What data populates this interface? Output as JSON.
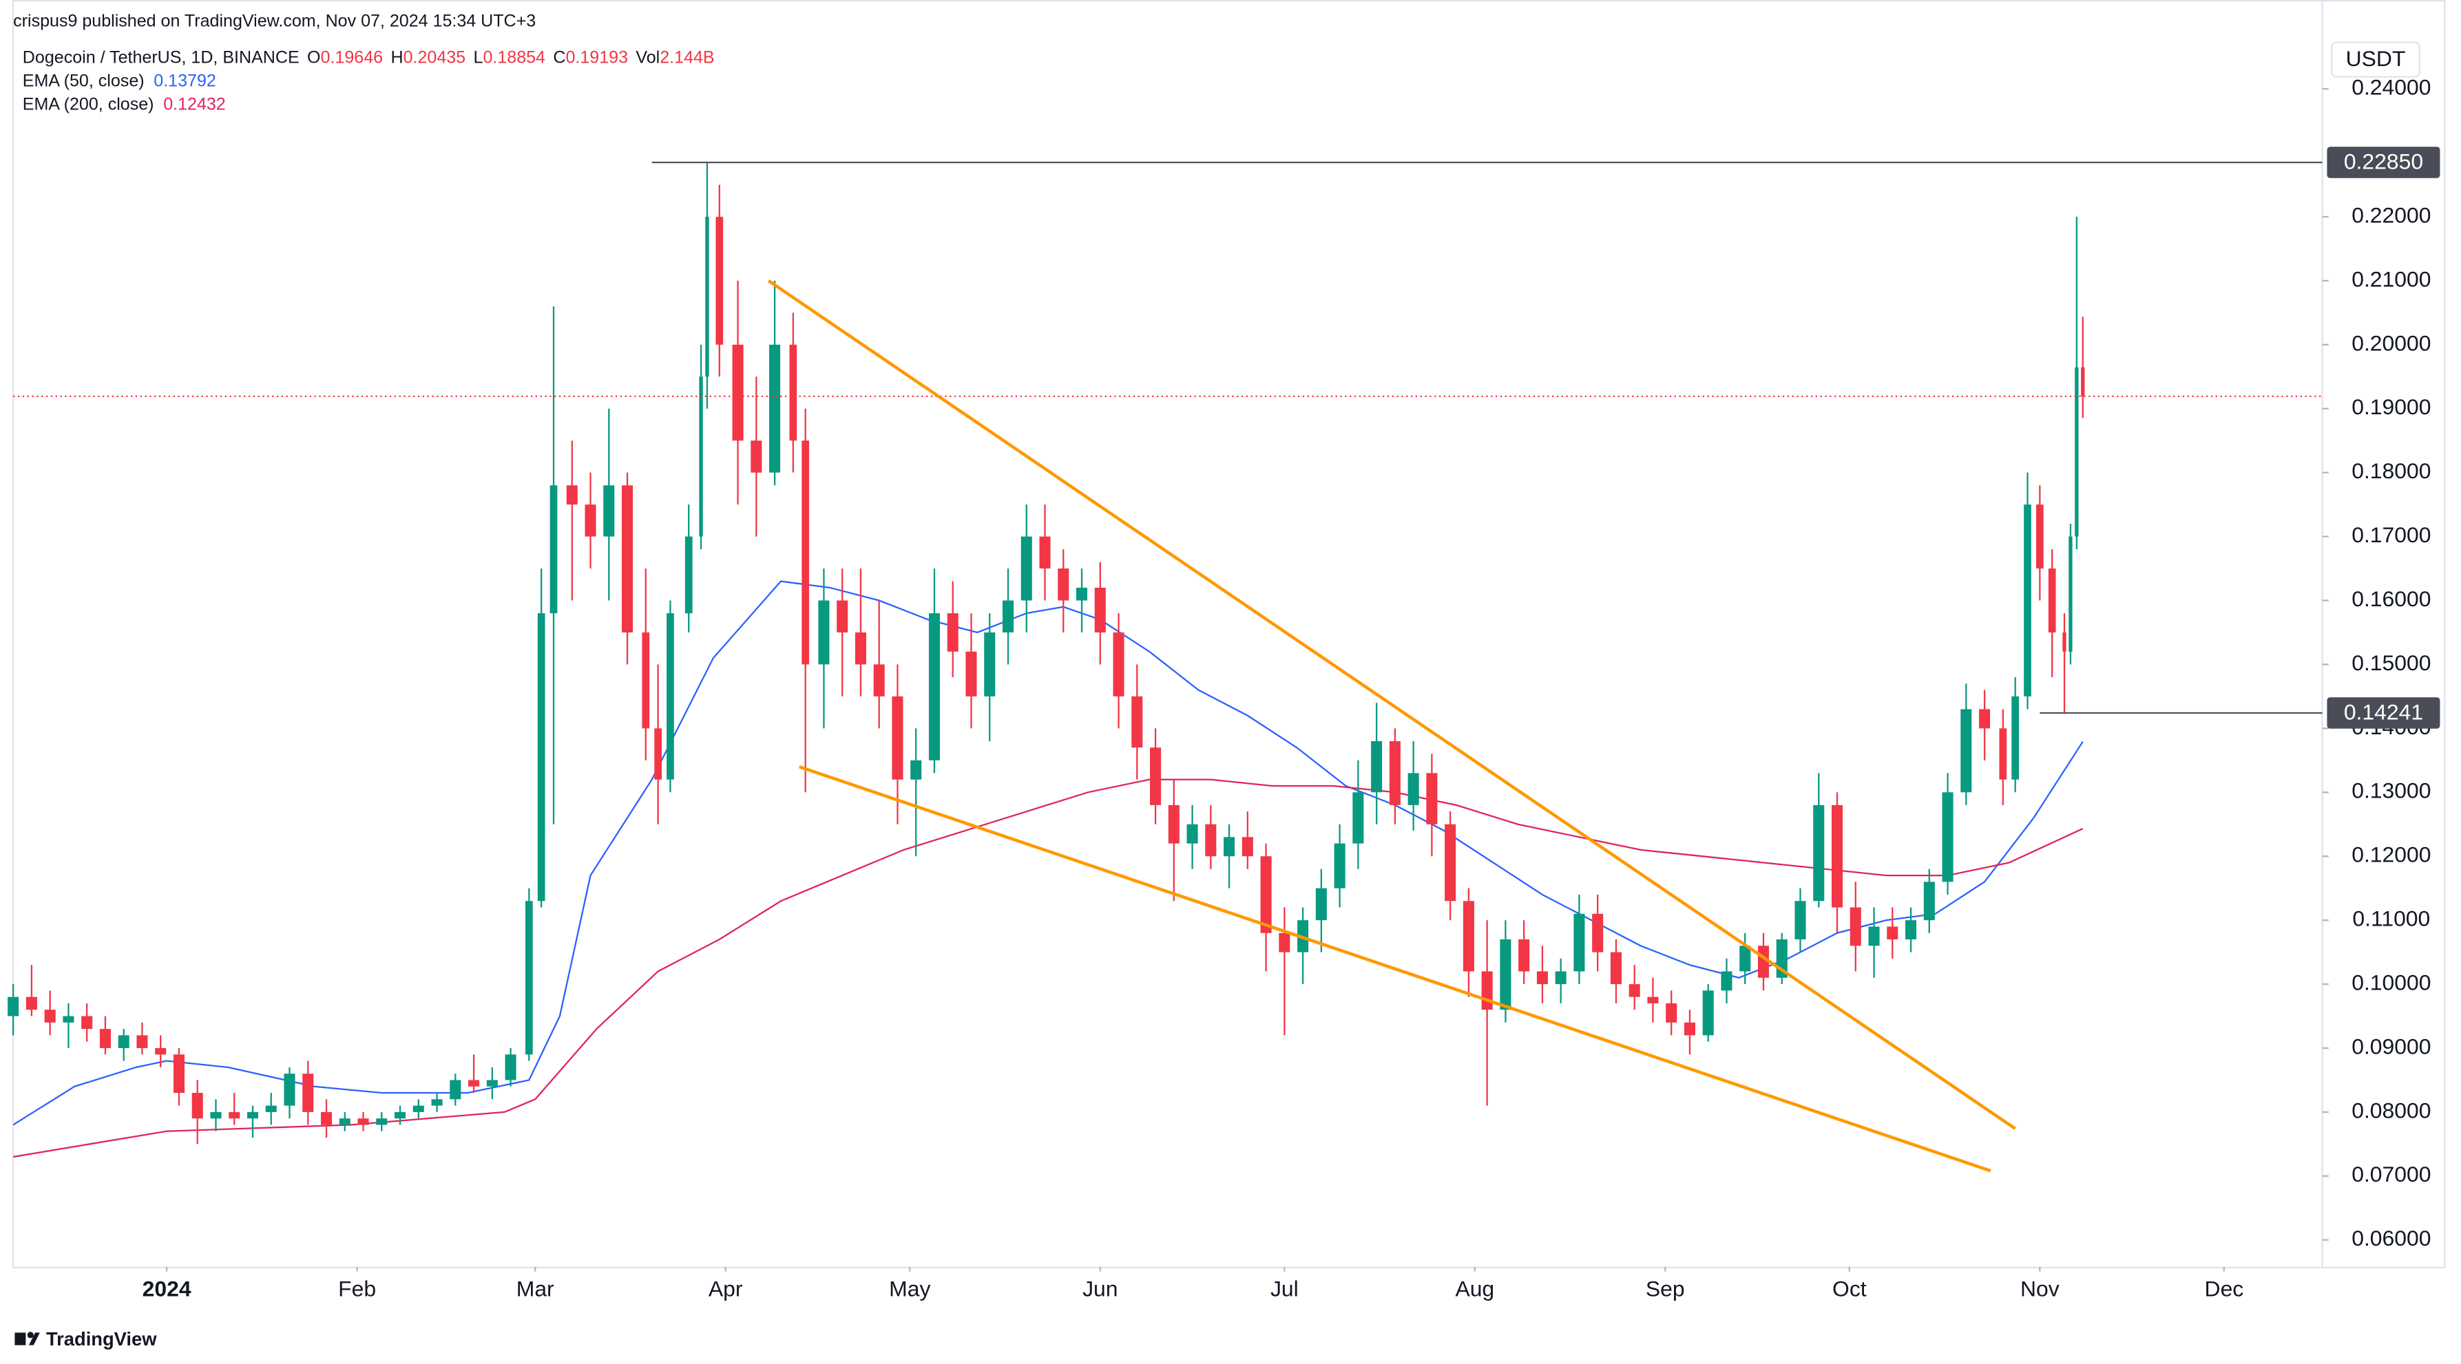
{
  "chart_data": {
    "type": "candlestick",
    "publisher": "crispus9 published on TradingView.com, Nov 07, 2024 15:34 UTC+3",
    "symbol": "Dogecoin / TetherUS, 1D, BINANCE",
    "ohlc_labels": [
      "O",
      "H",
      "L",
      "C",
      "Vol"
    ],
    "volume": {
      "value": 2144000000,
      "label": "2.144B"
    },
    "unit": "USDT",
    "brand": "TradingView",
    "up_color": "#089981",
    "down_color": "#f23645",
    "grid": false,
    "last_price_line": true,
    "xlim": [
      -25,
      351
    ],
    "xticks": [
      {
        "value": 0,
        "label": "2024"
      },
      {
        "value": 31,
        "label": "Feb"
      },
      {
        "value": 60,
        "label": "Mar"
      },
      {
        "value": 91,
        "label": "Apr"
      },
      {
        "value": 121,
        "label": "May"
      },
      {
        "value": 152,
        "label": "Jun"
      },
      {
        "value": 182,
        "label": "Jul"
      },
      {
        "value": 213,
        "label": "Aug"
      },
      {
        "value": 244,
        "label": "Sep"
      },
      {
        "value": 274,
        "label": "Oct"
      },
      {
        "value": 305,
        "label": "Nov"
      },
      {
        "value": 335,
        "label": "Dec"
      }
    ],
    "ylim": [
      0.0558,
      0.2539
    ],
    "yticks": [
      {
        "value": 0.06,
        "label": "0.06000"
      },
      {
        "value": 0.07,
        "label": "0.07000"
      },
      {
        "value": 0.08,
        "label": "0.08000"
      },
      {
        "value": 0.09,
        "label": "0.09000"
      },
      {
        "value": 0.1,
        "label": "0.10000"
      },
      {
        "value": 0.11,
        "label": "0.11000"
      },
      {
        "value": 0.12,
        "label": "0.12000"
      },
      {
        "value": 0.13,
        "label": "0.13000"
      },
      {
        "value": 0.14,
        "label": "0.14000"
      },
      {
        "value": 0.15,
        "label": "0.15000"
      },
      {
        "value": 0.16,
        "label": "0.16000"
      },
      {
        "value": 0.17,
        "label": "0.17000"
      },
      {
        "value": 0.18,
        "label": "0.18000"
      },
      {
        "value": 0.19,
        "label": "0.19000"
      },
      {
        "value": 0.2,
        "label": "0.20000"
      },
      {
        "value": 0.21,
        "label": "0.21000"
      },
      {
        "value": 0.22,
        "label": "0.22000"
      },
      {
        "value": 0.24,
        "label": "0.24000"
      }
    ],
    "candles": {
      "x": [
        -25,
        -22,
        -19,
        -16,
        -13,
        -10,
        -7,
        -4,
        -1,
        2,
        5,
        8,
        11,
        14,
        17,
        20,
        23,
        26,
        29,
        32,
        35,
        38,
        41,
        44,
        47,
        50,
        53,
        56,
        59,
        61,
        63,
        66,
        69,
        72,
        75,
        78,
        80,
        82,
        85,
        87,
        88,
        90,
        93,
        96,
        99,
        102,
        104,
        107,
        110,
        113,
        116,
        119,
        122,
        125,
        128,
        131,
        134,
        137,
        140,
        143,
        146,
        149,
        152,
        155,
        158,
        161,
        164,
        167,
        170,
        173,
        176,
        179,
        182,
        185,
        188,
        191,
        194,
        197,
        200,
        203,
        206,
        209,
        212,
        215,
        218,
        221,
        224,
        227,
        230,
        233,
        236,
        239,
        242,
        245,
        248,
        251,
        254,
        257,
        260,
        263,
        266,
        269,
        272,
        275,
        278,
        281,
        284,
        287,
        290,
        293,
        296,
        299,
        301,
        303,
        305,
        307,
        309,
        310,
        311,
        312
      ],
      "open": [
        0.095,
        0.098,
        0.096,
        0.094,
        0.095,
        0.093,
        0.09,
        0.092,
        0.09,
        0.089,
        0.083,
        0.079,
        0.08,
        0.079,
        0.08,
        0.081,
        0.086,
        0.08,
        0.078,
        0.079,
        0.078,
        0.079,
        0.08,
        0.081,
        0.082,
        0.085,
        0.084,
        0.085,
        0.089,
        0.113,
        0.158,
        0.178,
        0.175,
        0.17,
        0.178,
        0.155,
        0.14,
        0.132,
        0.158,
        0.17,
        0.195,
        0.22,
        0.2,
        0.185,
        0.18,
        0.2,
        0.185,
        0.15,
        0.16,
        0.155,
        0.15,
        0.145,
        0.132,
        0.135,
        0.158,
        0.152,
        0.145,
        0.155,
        0.16,
        0.17,
        0.165,
        0.16,
        0.162,
        0.155,
        0.145,
        0.137,
        0.128,
        0.122,
        0.125,
        0.12,
        0.123,
        0.12,
        0.108,
        0.105,
        0.11,
        0.115,
        0.122,
        0.13,
        0.138,
        0.128,
        0.133,
        0.125,
        0.113,
        0.102,
        0.096,
        0.107,
        0.102,
        0.1,
        0.102,
        0.111,
        0.105,
        0.1,
        0.098,
        0.097,
        0.094,
        0.092,
        0.099,
        0.102,
        0.106,
        0.101,
        0.107,
        0.113,
        0.128,
        0.112,
        0.106,
        0.109,
        0.107,
        0.11,
        0.116,
        0.13,
        0.143,
        0.14,
        0.132,
        0.145,
        0.175,
        0.165,
        0.155,
        0.152,
        0.17,
        0.19646
      ],
      "high": [
        0.1,
        0.103,
        0.099,
        0.097,
        0.097,
        0.095,
        0.093,
        0.094,
        0.092,
        0.09,
        0.085,
        0.082,
        0.083,
        0.081,
        0.083,
        0.087,
        0.088,
        0.082,
        0.08,
        0.08,
        0.08,
        0.081,
        0.082,
        0.083,
        0.086,
        0.089,
        0.087,
        0.09,
        0.115,
        0.165,
        0.206,
        0.185,
        0.18,
        0.19,
        0.18,
        0.165,
        0.15,
        0.16,
        0.175,
        0.2,
        0.2285,
        0.225,
        0.21,
        0.195,
        0.21,
        0.205,
        0.19,
        0.165,
        0.165,
        0.165,
        0.16,
        0.15,
        0.14,
        0.165,
        0.163,
        0.158,
        0.158,
        0.165,
        0.175,
        0.175,
        0.168,
        0.165,
        0.166,
        0.158,
        0.15,
        0.14,
        0.132,
        0.128,
        0.128,
        0.125,
        0.127,
        0.122,
        0.112,
        0.112,
        0.118,
        0.125,
        0.135,
        0.144,
        0.14,
        0.138,
        0.136,
        0.127,
        0.115,
        0.11,
        0.11,
        0.11,
        0.106,
        0.104,
        0.114,
        0.114,
        0.107,
        0.103,
        0.101,
        0.099,
        0.096,
        0.1,
        0.104,
        0.108,
        0.108,
        0.108,
        0.115,
        0.133,
        0.13,
        0.116,
        0.112,
        0.112,
        0.112,
        0.118,
        0.133,
        0.147,
        0.146,
        0.143,
        0.148,
        0.18,
        0.178,
        0.168,
        0.158,
        0.172,
        0.22,
        0.20435
      ],
      "low": [
        0.092,
        0.095,
        0.092,
        0.09,
        0.091,
        0.089,
        0.088,
        0.089,
        0.087,
        0.081,
        0.075,
        0.077,
        0.078,
        0.076,
        0.078,
        0.079,
        0.078,
        0.076,
        0.077,
        0.077,
        0.077,
        0.078,
        0.079,
        0.08,
        0.081,
        0.083,
        0.082,
        0.084,
        0.088,
        0.112,
        0.125,
        0.16,
        0.165,
        0.16,
        0.15,
        0.135,
        0.125,
        0.13,
        0.155,
        0.168,
        0.19,
        0.195,
        0.175,
        0.17,
        0.178,
        0.18,
        0.13,
        0.14,
        0.145,
        0.145,
        0.14,
        0.125,
        0.12,
        0.133,
        0.148,
        0.14,
        0.138,
        0.15,
        0.155,
        0.16,
        0.155,
        0.155,
        0.15,
        0.14,
        0.132,
        0.125,
        0.113,
        0.118,
        0.118,
        0.115,
        0.118,
        0.102,
        0.092,
        0.1,
        0.105,
        0.112,
        0.118,
        0.125,
        0.125,
        0.124,
        0.12,
        0.11,
        0.098,
        0.081,
        0.094,
        0.1,
        0.097,
        0.097,
        0.1,
        0.102,
        0.097,
        0.096,
        0.094,
        0.092,
        0.089,
        0.091,
        0.097,
        0.1,
        0.099,
        0.1,
        0.105,
        0.112,
        0.108,
        0.102,
        0.101,
        0.104,
        0.105,
        0.108,
        0.114,
        0.128,
        0.135,
        0.128,
        0.13,
        0.143,
        0.16,
        0.148,
        0.14241,
        0.15,
        0.168,
        0.18854
      ],
      "close": [
        0.098,
        0.096,
        0.094,
        0.095,
        0.093,
        0.09,
        0.092,
        0.09,
        0.089,
        0.083,
        0.079,
        0.08,
        0.079,
        0.08,
        0.081,
        0.086,
        0.08,
        0.078,
        0.079,
        0.078,
        0.079,
        0.08,
        0.081,
        0.082,
        0.085,
        0.084,
        0.085,
        0.089,
        0.113,
        0.158,
        0.178,
        0.175,
        0.17,
        0.178,
        0.155,
        0.14,
        0.132,
        0.158,
        0.17,
        0.195,
        0.22,
        0.2,
        0.185,
        0.18,
        0.2,
        0.185,
        0.15,
        0.16,
        0.155,
        0.15,
        0.145,
        0.132,
        0.135,
        0.158,
        0.152,
        0.145,
        0.155,
        0.16,
        0.17,
        0.165,
        0.16,
        0.162,
        0.155,
        0.145,
        0.137,
        0.128,
        0.122,
        0.125,
        0.12,
        0.123,
        0.12,
        0.108,
        0.105,
        0.11,
        0.115,
        0.122,
        0.13,
        0.138,
        0.128,
        0.133,
        0.125,
        0.113,
        0.102,
        0.096,
        0.107,
        0.102,
        0.1,
        0.102,
        0.111,
        0.105,
        0.1,
        0.098,
        0.097,
        0.094,
        0.092,
        0.099,
        0.102,
        0.106,
        0.101,
        0.107,
        0.113,
        0.128,
        0.112,
        0.106,
        0.109,
        0.107,
        0.11,
        0.116,
        0.13,
        0.143,
        0.14,
        0.132,
        0.145,
        0.175,
        0.165,
        0.155,
        0.152,
        0.17,
        0.19646,
        0.19193
      ]
    },
    "series": [
      {
        "name": "EMA (50, close)",
        "color": "#2962ff",
        "x": [
          -25,
          -15,
          -5,
          0,
          10,
          24,
          35,
          49,
          59,
          64,
          69,
          79,
          89,
          100,
          108,
          116,
          124,
          132,
          140,
          146,
          152,
          160,
          168,
          176,
          184,
          192,
          200,
          208,
          216,
          224,
          232,
          240,
          248,
          256,
          264,
          272,
          280,
          288,
          296,
          304,
          312
        ],
        "values": [
          0.078,
          0.084,
          0.087,
          0.088,
          0.087,
          0.084,
          0.083,
          0.083,
          0.085,
          0.095,
          0.117,
          0.132,
          0.151,
          0.163,
          0.162,
          0.16,
          0.157,
          0.155,
          0.158,
          0.159,
          0.157,
          0.152,
          0.146,
          0.142,
          0.137,
          0.131,
          0.128,
          0.124,
          0.119,
          0.114,
          0.11,
          0.106,
          0.103,
          0.101,
          0.104,
          0.108,
          0.11,
          0.111,
          0.116,
          0.126,
          0.13792
        ]
      },
      {
        "name": "EMA (200, close)",
        "color": "#e0245e",
        "x": [
          -25,
          0,
          30,
          55,
          60,
          70,
          80,
          90,
          100,
          110,
          120,
          130,
          140,
          150,
          160,
          170,
          180,
          190,
          200,
          210,
          220,
          230,
          240,
          250,
          260,
          270,
          280,
          290,
          300,
          312
        ],
        "values": [
          0.073,
          0.077,
          0.078,
          0.08,
          0.082,
          0.093,
          0.102,
          0.107,
          0.113,
          0.117,
          0.121,
          0.124,
          0.127,
          0.13,
          0.132,
          0.132,
          0.131,
          0.131,
          0.13,
          0.128,
          0.125,
          0.123,
          0.121,
          0.12,
          0.119,
          0.118,
          0.117,
          0.117,
          0.119,
          0.12432
        ]
      }
    ],
    "trendlines": [
      {
        "color": "#ff9800",
        "x": [
          98,
          301
        ],
        "values": [
          0.21,
          0.0774
        ]
      },
      {
        "color": "#ff9800",
        "x": [
          103,
          297
        ],
        "values": [
          0.134,
          0.0708
        ]
      }
    ],
    "levels": [
      {
        "value": 0.2285,
        "label": "0.22850",
        "x_start": 79
      },
      {
        "value": 0.14241,
        "x_start": 305
      }
    ]
  }
}
